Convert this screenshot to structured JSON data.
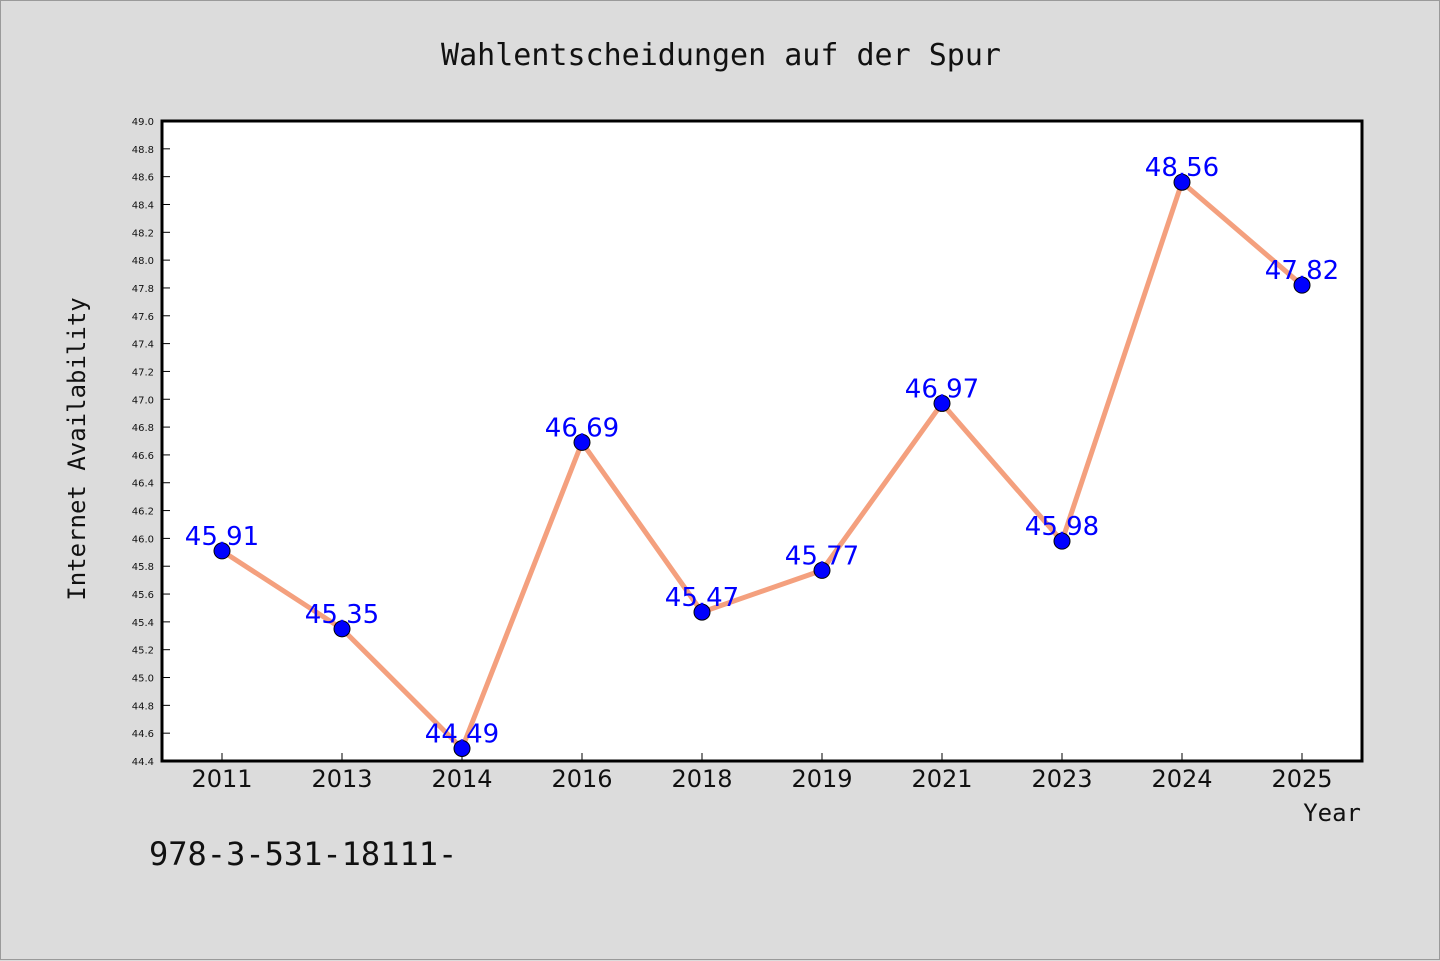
{
  "chart_data": {
    "type": "line",
    "title": "Wahlentscheidungen auf der Spur",
    "xlabel": "Year",
    "ylabel": "Internet Availability",
    "categories": [
      "2011",
      "2013",
      "2014",
      "2016",
      "2018",
      "2019",
      "2021",
      "2023",
      "2024",
      "2025"
    ],
    "series": [
      {
        "values": [
          45.91,
          45.35,
          44.49,
          46.69,
          45.47,
          45.77,
          46.97,
          45.98,
          48.56,
          47.82
        ],
        "labels": [
          "45.91",
          "45.35",
          "44.49",
          "46.69",
          "45.47",
          "45.77",
          "46.97",
          "45.98",
          "48.56",
          "47.82"
        ],
        "line_color": "#f4a07e",
        "marker_color": "#0000ff"
      }
    ],
    "ylim": [
      44.4,
      49.0
    ],
    "yticks": [
      "44.4",
      "44.6",
      "44.8",
      "45.0",
      "45.2",
      "45.4",
      "45.6",
      "45.8",
      "46.0",
      "46.2",
      "46.4",
      "46.6",
      "46.8",
      "47.0",
      "47.2",
      "47.4",
      "47.6",
      "47.8",
      "48.0",
      "48.2",
      "48.4",
      "48.6",
      "48.8",
      "49.0"
    ],
    "grid": false,
    "legend": "none"
  },
  "footnote": "978-3-531-18111-"
}
